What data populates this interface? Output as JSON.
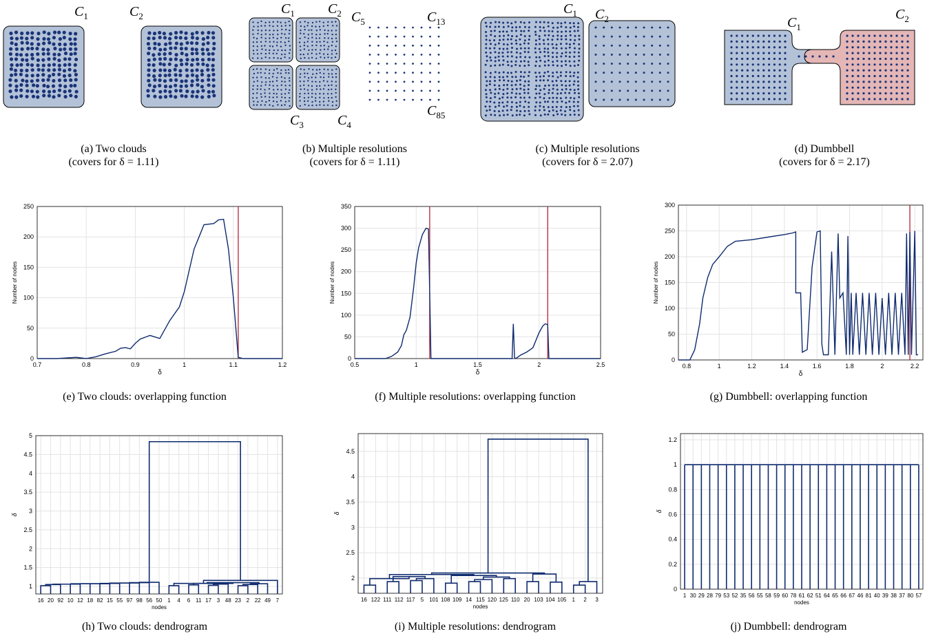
{
  "captions": {
    "a": [
      "(a) Two clouds",
      "(covers for δ = 1.11)"
    ],
    "b": [
      "(b) Multiple resolutions",
      "(covers for δ = 1.11)"
    ],
    "c": [
      "(c) Multiple resolutions",
      "(covers for δ = 2.07)"
    ],
    "d": [
      "(d) Dumbbell",
      "(covers for δ = 2.17)"
    ],
    "e": "(e) Two clouds: overlapping function",
    "f": "(f) Multiple resolutions: overlapping function",
    "g": "(g) Dumbbell: overlapping function",
    "h": "(h) Two clouds: dendrogram",
    "i": "(i) Multiple resolutions: dendrogram",
    "j": "(j) Dumbbell: dendrogram"
  },
  "cover_labels": {
    "a": [
      "C1",
      "C2"
    ],
    "b": [
      "C1",
      "C2",
      "C3",
      "C4",
      "C5",
      "C13",
      "C85"
    ],
    "c": [
      "C1",
      "C2"
    ],
    "d": [
      "C1",
      "C2"
    ]
  },
  "colors": {
    "cover_blue": "#b4c2d8",
    "cover_red": "#e4b6b6",
    "point": "#1a3478",
    "line": "#0e2a6e",
    "marker": "#b22234",
    "grid": "#e3e3e3"
  },
  "chart_data": [
    {
      "id": "e",
      "type": "line",
      "xlabel": "δ",
      "ylabel": "Number of nodes",
      "xlim": [
        0.7,
        1.2
      ],
      "ylim": [
        0,
        250
      ],
      "xticks": [
        0.7,
        0.8,
        0.9,
        1,
        1.1,
        1.2
      ],
      "yticks": [
        0,
        50,
        100,
        150,
        200,
        250
      ],
      "grid": true,
      "vlines": [
        1.11
      ],
      "x": [
        0.7,
        0.72,
        0.74,
        0.76,
        0.78,
        0.8,
        0.82,
        0.84,
        0.86,
        0.87,
        0.88,
        0.89,
        0.9,
        0.91,
        0.93,
        0.95,
        0.97,
        0.99,
        1.0,
        1.01,
        1.02,
        1.03,
        1.04,
        1.06,
        1.07,
        1.08,
        1.09,
        1.1,
        1.11,
        1.12,
        1.2
      ],
      "y": [
        0,
        0,
        0,
        1,
        2,
        0,
        3,
        8,
        12,
        17,
        18,
        16,
        25,
        32,
        38,
        33,
        62,
        85,
        110,
        145,
        180,
        200,
        220,
        222,
        228,
        229,
        180,
        100,
        2,
        0,
        0
      ]
    },
    {
      "id": "f",
      "type": "line",
      "xlabel": "δ",
      "ylabel": "Number of nodes",
      "xlim": [
        0.5,
        2.5
      ],
      "ylim": [
        0,
        350
      ],
      "xticks": [
        0.5,
        1,
        1.5,
        2,
        2.5
      ],
      "yticks": [
        0,
        50,
        100,
        150,
        200,
        250,
        300,
        350
      ],
      "grid": true,
      "vlines": [
        1.11,
        2.07
      ],
      "x": [
        0.5,
        0.75,
        0.8,
        0.85,
        0.88,
        0.9,
        0.92,
        0.95,
        0.98,
        1.0,
        1.02,
        1.05,
        1.08,
        1.1,
        1.11,
        1.12,
        1.78,
        1.79,
        1.8,
        1.81,
        1.82,
        1.85,
        1.9,
        1.95,
        2.0,
        2.03,
        2.05,
        2.07,
        2.08,
        2.5
      ],
      "y": [
        0,
        0,
        5,
        15,
        30,
        55,
        65,
        95,
        165,
        220,
        255,
        285,
        300,
        298,
        150,
        0,
        0,
        80,
        2,
        0,
        2,
        8,
        15,
        25,
        60,
        75,
        80,
        78,
        0,
        0
      ]
    },
    {
      "id": "g",
      "type": "line",
      "xlabel": "δ",
      "ylabel": "Number of nodes",
      "xlim": [
        0.75,
        2.25
      ],
      "ylim": [
        0,
        300
      ],
      "xticks": [
        0.8,
        1,
        1.2,
        1.4,
        1.6,
        1.8,
        2,
        2.2
      ],
      "yticks": [
        0,
        50,
        100,
        150,
        200,
        250,
        300
      ],
      "grid": true,
      "vlines": [
        2.17
      ],
      "x": [
        0.75,
        0.82,
        0.85,
        0.88,
        0.9,
        0.93,
        0.96,
        1.0,
        1.05,
        1.1,
        1.2,
        1.3,
        1.4,
        1.45,
        1.47,
        1.47,
        1.5,
        1.51,
        1.54,
        1.57,
        1.6,
        1.62,
        1.63,
        1.64,
        1.67,
        1.69,
        1.71,
        1.73,
        1.74,
        1.76,
        1.78,
        1.79,
        1.8,
        1.81,
        1.82,
        1.84,
        1.86,
        1.88,
        1.9,
        1.92,
        1.94,
        1.96,
        1.98,
        2.0,
        2.02,
        2.04,
        2.06,
        2.08,
        2.1,
        2.12,
        2.14,
        2.15,
        2.16,
        2.17,
        2.18,
        2.19,
        2.2,
        2.21,
        2.22
      ],
      "y": [
        0,
        0,
        20,
        70,
        120,
        160,
        185,
        200,
        220,
        230,
        233,
        238,
        243,
        246,
        248,
        130,
        130,
        15,
        20,
        180,
        248,
        250,
        30,
        10,
        10,
        210,
        10,
        245,
        120,
        130,
        10,
        240,
        10,
        130,
        10,
        130,
        10,
        130,
        10,
        130,
        10,
        130,
        10,
        120,
        10,
        130,
        10,
        130,
        10,
        130,
        10,
        245,
        10,
        248,
        10,
        130,
        250,
        10,
        10
      ]
    },
    {
      "id": "h",
      "type": "dendrogram",
      "xlabel": "nodes",
      "ylabel": "δ",
      "ylim": [
        0.8,
        5
      ],
      "yticks": [
        1,
        1.5,
        2,
        2.5,
        3,
        3.5,
        4,
        4.5,
        5
      ],
      "grid": true,
      "leaves": [
        "16",
        "20",
        "92",
        "10",
        "12",
        "18",
        "82",
        "15",
        "55",
        "97",
        "98",
        "56",
        "50",
        "1",
        "4",
        "6",
        "11",
        "17",
        "3",
        "48",
        "23",
        "2",
        "22",
        "49",
        "7"
      ],
      "merges": [
        [
          0,
          1,
          1.02
        ],
        [
          25,
          2,
          1.05
        ],
        [
          26,
          3,
          1.06
        ],
        [
          27,
          4,
          1.06
        ],
        [
          28,
          5,
          1.07
        ],
        [
          29,
          6,
          1.07
        ],
        [
          30,
          7,
          1.07
        ],
        [
          31,
          8,
          1.08
        ],
        [
          32,
          9,
          1.09
        ],
        [
          33,
          10,
          1.09
        ],
        [
          34,
          11,
          1.1
        ],
        [
          35,
          12,
          1.11
        ],
        [
          13,
          14,
          1.02
        ],
        [
          15,
          16,
          1.04
        ],
        [
          17,
          18,
          1.03
        ],
        [
          39,
          19,
          1.06
        ],
        [
          38,
          40,
          1.08
        ],
        [
          20,
          21,
          1.02
        ],
        [
          42,
          22,
          1.05
        ],
        [
          43,
          23,
          1.07
        ],
        [
          41,
          44,
          1.1
        ],
        [
          37,
          45,
          1.08
        ],
        [
          46,
          24,
          1.16
        ],
        [
          36,
          47,
          4.84
        ]
      ]
    },
    {
      "id": "i",
      "type": "dendrogram",
      "xlabel": "nodes",
      "ylabel": "δ",
      "ylim": [
        1.7,
        4.85
      ],
      "yticks": [
        2,
        2.5,
        3,
        3.5,
        4,
        4.5
      ],
      "grid": true,
      "leaves": [
        "16",
        "122",
        "111",
        "112",
        "117",
        "5",
        "101",
        "108",
        "109",
        "14",
        "115",
        "120",
        "125",
        "110",
        "20",
        "103",
        "104",
        "105",
        "1",
        "2",
        "3"
      ],
      "merges": [
        [
          0,
          1,
          1.86
        ],
        [
          2,
          3,
          1.93
        ],
        [
          4,
          5,
          1.95
        ],
        [
          23,
          6,
          1.99
        ],
        [
          22,
          24,
          2.03
        ],
        [
          21,
          25,
          1.99
        ],
        [
          7,
          8,
          1.9
        ],
        [
          9,
          10,
          1.93
        ],
        [
          28,
          11,
          1.97
        ],
        [
          12,
          13,
          1.99
        ],
        [
          29,
          30,
          2.02
        ],
        [
          27,
          31,
          2.05
        ],
        [
          26,
          32,
          2.07
        ],
        [
          14,
          15,
          1.93
        ],
        [
          16,
          17,
          1.92
        ],
        [
          34,
          35,
          2.08
        ],
        [
          33,
          36,
          2.1
        ],
        [
          18,
          19,
          1.86
        ],
        [
          38,
          20,
          1.93
        ],
        [
          37,
          39,
          4.74
        ]
      ]
    },
    {
      "id": "j",
      "type": "dendrogram",
      "xlabel": "nodes",
      "ylabel": "δ",
      "ylim": [
        0,
        1.25
      ],
      "yticks": [
        0,
        0.2,
        0.4,
        0.6,
        0.8,
        1,
        1.2
      ],
      "grid": true,
      "leaves": [
        "1",
        "30",
        "29",
        "28",
        "79",
        "53",
        "52",
        "35",
        "56",
        "55",
        "58",
        "59",
        "60",
        "78",
        "61",
        "62",
        "51",
        "64",
        "65",
        "66",
        "67",
        "46",
        "81",
        "40",
        "39",
        "38",
        "37",
        "80",
        "57"
      ],
      "flat_height": 1
    }
  ]
}
